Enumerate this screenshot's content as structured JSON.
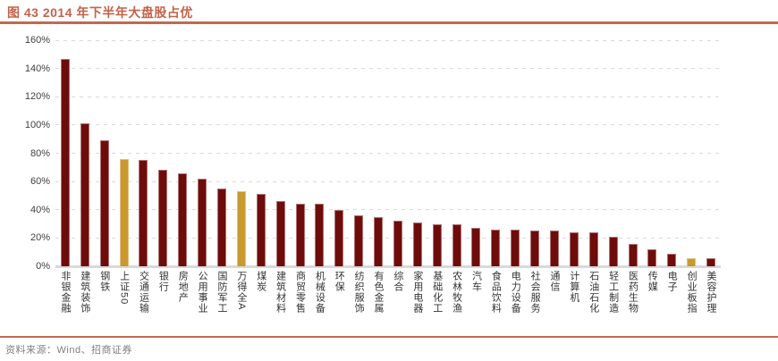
{
  "figure": {
    "title": "图 43 2014 年下半年大盘股占优",
    "source": "资料来源：Wind、招商证券"
  },
  "colors": {
    "accent": "#C4624A",
    "bar": "#6E0C0C",
    "highlight": "#C9992E",
    "gridline": "#D9D9D9",
    "axis_text": "#3F3F3F",
    "source_text": "#7F7F7F"
  },
  "chart_data": {
    "type": "bar",
    "title": "图 43 2014 年下半年大盘股占优",
    "categories": [
      "非银金融",
      "建筑装饰",
      "钢铁",
      "上证50",
      "交通运输",
      "银行",
      "房地产",
      "公用事业",
      "国防军工",
      "万得全A",
      "煤炭",
      "建筑材料",
      "商贸零售",
      "机械设备",
      "环保",
      "纺织服饰",
      "有色金属",
      "综合",
      "家用电器",
      "基础化工",
      "农林牧渔",
      "汽车",
      "食品饮料",
      "电力设备",
      "社会服务",
      "通信",
      "计算机",
      "石油石化",
      "轻工制造",
      "医药生物",
      "传媒",
      "电子",
      "创业板指",
      "美容护理"
    ],
    "values": [
      147,
      101,
      89,
      76,
      75,
      68,
      66,
      62,
      55,
      53,
      51,
      46,
      44,
      44,
      40,
      36,
      35,
      32,
      31,
      30,
      30,
      27,
      26,
      26,
      25,
      25,
      24,
      24,
      21,
      16,
      12,
      9,
      6,
      6
    ],
    "value_suffix": "%",
    "xlabel": "",
    "ylabel": "",
    "ylim": [
      0,
      160
    ],
    "ytick_step": 20,
    "ytick_labels": [
      "0%",
      "20%",
      "40%",
      "60%",
      "80%",
      "100%",
      "120%",
      "140%",
      "160%"
    ],
    "grid": "horizontal-dashed",
    "legend": "none",
    "bar_color": "#6E0C0C",
    "highlight_color": "#C9992E",
    "highlighted_categories": [
      "上证50",
      "万得全A",
      "创业板指"
    ]
  }
}
